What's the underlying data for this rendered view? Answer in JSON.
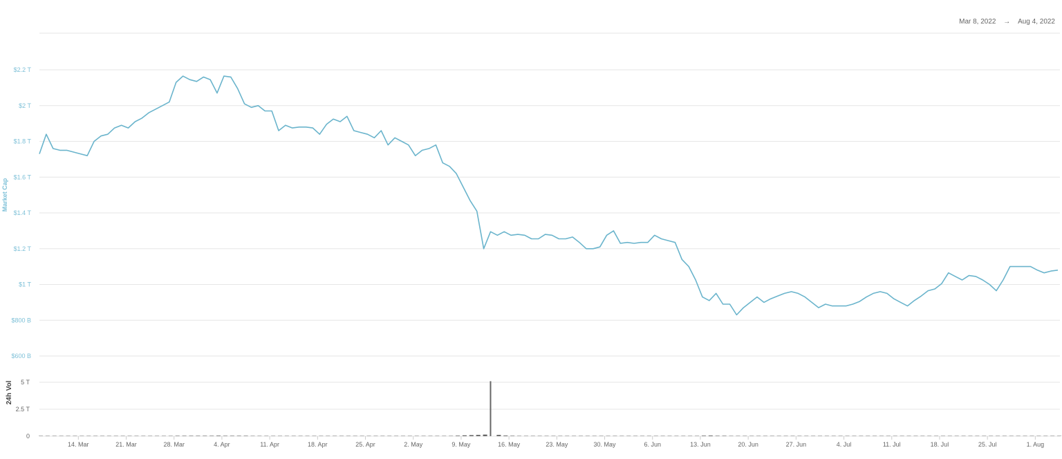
{
  "date_range": {
    "start": "Mar 8, 2022",
    "arrow": "→",
    "end": "Aug 4, 2022"
  },
  "colors": {
    "line": "#6ab4cc",
    "axis_label": "#7fc1d8",
    "volume": "#666666",
    "grid": "#e6e6e6"
  },
  "chart_data": [
    {
      "type": "line",
      "ylabel": "Market Cap",
      "ylim": [
        0.6,
        2.2
      ],
      "unit": "trillion USD",
      "yticks": [
        {
          "v": 2.2,
          "label": "$2.2 T"
        },
        {
          "v": 2.0,
          "label": "$2 T"
        },
        {
          "v": 1.8,
          "label": "$1.8 T"
        },
        {
          "v": 1.6,
          "label": "$1.6 T"
        },
        {
          "v": 1.4,
          "label": "$1.4 T"
        },
        {
          "v": 1.2,
          "label": "$1.2 T"
        },
        {
          "v": 1.0,
          "label": "$1 T"
        },
        {
          "v": 0.8,
          "label": "$800 B"
        },
        {
          "v": 0.6,
          "label": "$600 B"
        }
      ],
      "grid": true,
      "values": [
        1.73,
        1.84,
        1.76,
        1.75,
        1.75,
        1.74,
        1.73,
        1.72,
        1.8,
        1.83,
        1.84,
        1.875,
        1.89,
        1.875,
        1.91,
        1.93,
        1.96,
        1.98,
        2.0,
        2.02,
        2.13,
        2.165,
        2.145,
        2.135,
        2.16,
        2.145,
        2.07,
        2.165,
        2.16,
        2.095,
        2.01,
        1.99,
        2.0,
        1.97,
        1.97,
        1.86,
        1.89,
        1.875,
        1.88,
        1.88,
        1.875,
        1.84,
        1.895,
        1.925,
        1.91,
        1.94,
        1.86,
        1.85,
        1.84,
        1.82,
        1.86,
        1.78,
        1.82,
        1.8,
        1.78,
        1.72,
        1.75,
        1.76,
        1.78,
        1.68,
        1.66,
        1.62,
        1.545,
        1.47,
        1.41,
        1.2,
        1.295,
        1.275,
        1.295,
        1.275,
        1.28,
        1.275,
        1.255,
        1.255,
        1.28,
        1.275,
        1.255,
        1.255,
        1.265,
        1.235,
        1.2,
        1.2,
        1.21,
        1.275,
        1.3,
        1.23,
        1.235,
        1.23,
        1.235,
        1.235,
        1.275,
        1.255,
        1.245,
        1.235,
        1.14,
        1.1,
        1.025,
        0.93,
        0.91,
        0.95,
        0.89,
        0.89,
        0.83,
        0.87,
        0.9,
        0.93,
        0.9,
        0.92,
        0.935,
        0.95,
        0.96,
        0.95,
        0.93,
        0.9,
        0.87,
        0.89,
        0.88,
        0.88,
        0.88,
        0.89,
        0.905,
        0.93,
        0.95,
        0.96,
        0.95,
        0.92,
        0.9,
        0.88,
        0.91,
        0.935,
        0.965,
        0.975,
        1.005,
        1.065,
        1.045,
        1.025,
        1.05,
        1.045,
        1.025,
        1.0,
        0.965,
        1.025,
        1.1,
        1.1,
        1.1,
        1.1,
        1.08,
        1.065,
        1.075,
        1.08
      ]
    },
    {
      "type": "bar",
      "ylabel": "24h Vol",
      "ylim": [
        0,
        5
      ],
      "unit": "trillion",
      "yticks": [
        {
          "v": 5,
          "label": "5 T"
        },
        {
          "v": 2.5,
          "label": "2.5 T"
        },
        {
          "v": 0,
          "label": "0"
        }
      ],
      "values": [
        0.03,
        0.03,
        0.03,
        0.03,
        0.03,
        0.03,
        0.03,
        0.03,
        0.03,
        0.03,
        0.03,
        0.03,
        0.03,
        0.03,
        0.03,
        0.03,
        0.03,
        0.03,
        0.03,
        0.03,
        0.04,
        0.04,
        0.04,
        0.04,
        0.04,
        0.04,
        0.05,
        0.04,
        0.04,
        0.04,
        0.04,
        0.03,
        0.03,
        0.03,
        0.03,
        0.03,
        0.03,
        0.03,
        0.03,
        0.03,
        0.03,
        0.03,
        0.03,
        0.03,
        0.03,
        0.03,
        0.03,
        0.03,
        0.03,
        0.03,
        0.03,
        0.03,
        0.03,
        0.03,
        0.03,
        0.03,
        0.03,
        0.03,
        0.03,
        0.03,
        0.03,
        0.05,
        0.08,
        0.1,
        0.12,
        0.15,
        5.1,
        0.12,
        0.06,
        0.04,
        0.03,
        0.03,
        0.03,
        0.03,
        0.03,
        0.03,
        0.03,
        0.03,
        0.03,
        0.03,
        0.03,
        0.03,
        0.03,
        0.03,
        0.03,
        0.03,
        0.03,
        0.03,
        0.03,
        0.03,
        0.03,
        0.03,
        0.03,
        0.03,
        0.03,
        0.03,
        0.03,
        0.05,
        0.06,
        0.04,
        0.04,
        0.03,
        0.03,
        0.03,
        0.03,
        0.03,
        0.03,
        0.03,
        0.03,
        0.03,
        0.03,
        0.03,
        0.03,
        0.03,
        0.03,
        0.03,
        0.03,
        0.03,
        0.03,
        0.03,
        0.03,
        0.03,
        0.03,
        0.03,
        0.03,
        0.03,
        0.03,
        0.03,
        0.03,
        0.03,
        0.03,
        0.03,
        0.03,
        0.03,
        0.03,
        0.03,
        0.03,
        0.03,
        0.03,
        0.03,
        0.03,
        0.03,
        0.03,
        0.03,
        0.03,
        0.03,
        0.03,
        0.03,
        0.03,
        0.03
      ]
    }
  ],
  "x": {
    "first_date": "2022-03-08",
    "last_date": "2022-08-04",
    "ticks": [
      {
        "date": "2022-03-14",
        "label": "14. Mar"
      },
      {
        "date": "2022-03-21",
        "label": "21. Mar"
      },
      {
        "date": "2022-03-28",
        "label": "28. Mar"
      },
      {
        "date": "2022-04-04",
        "label": "4. Apr"
      },
      {
        "date": "2022-04-11",
        "label": "11. Apr"
      },
      {
        "date": "2022-04-18",
        "label": "18. Apr"
      },
      {
        "date": "2022-04-25",
        "label": "25. Apr"
      },
      {
        "date": "2022-05-02",
        "label": "2. May"
      },
      {
        "date": "2022-05-09",
        "label": "9. May"
      },
      {
        "date": "2022-05-16",
        "label": "16. May"
      },
      {
        "date": "2022-05-23",
        "label": "23. May"
      },
      {
        "date": "2022-05-30",
        "label": "30. May"
      },
      {
        "date": "2022-06-06",
        "label": "6. Jun"
      },
      {
        "date": "2022-06-13",
        "label": "13. Jun"
      },
      {
        "date": "2022-06-20",
        "label": "20. Jun"
      },
      {
        "date": "2022-06-27",
        "label": "27. Jun"
      },
      {
        "date": "2022-07-04",
        "label": "4. Jul"
      },
      {
        "date": "2022-07-11",
        "label": "11. Jul"
      },
      {
        "date": "2022-07-18",
        "label": "18. Jul"
      },
      {
        "date": "2022-07-25",
        "label": "25. Jul"
      },
      {
        "date": "2022-08-01",
        "label": "1. Aug"
      }
    ]
  }
}
